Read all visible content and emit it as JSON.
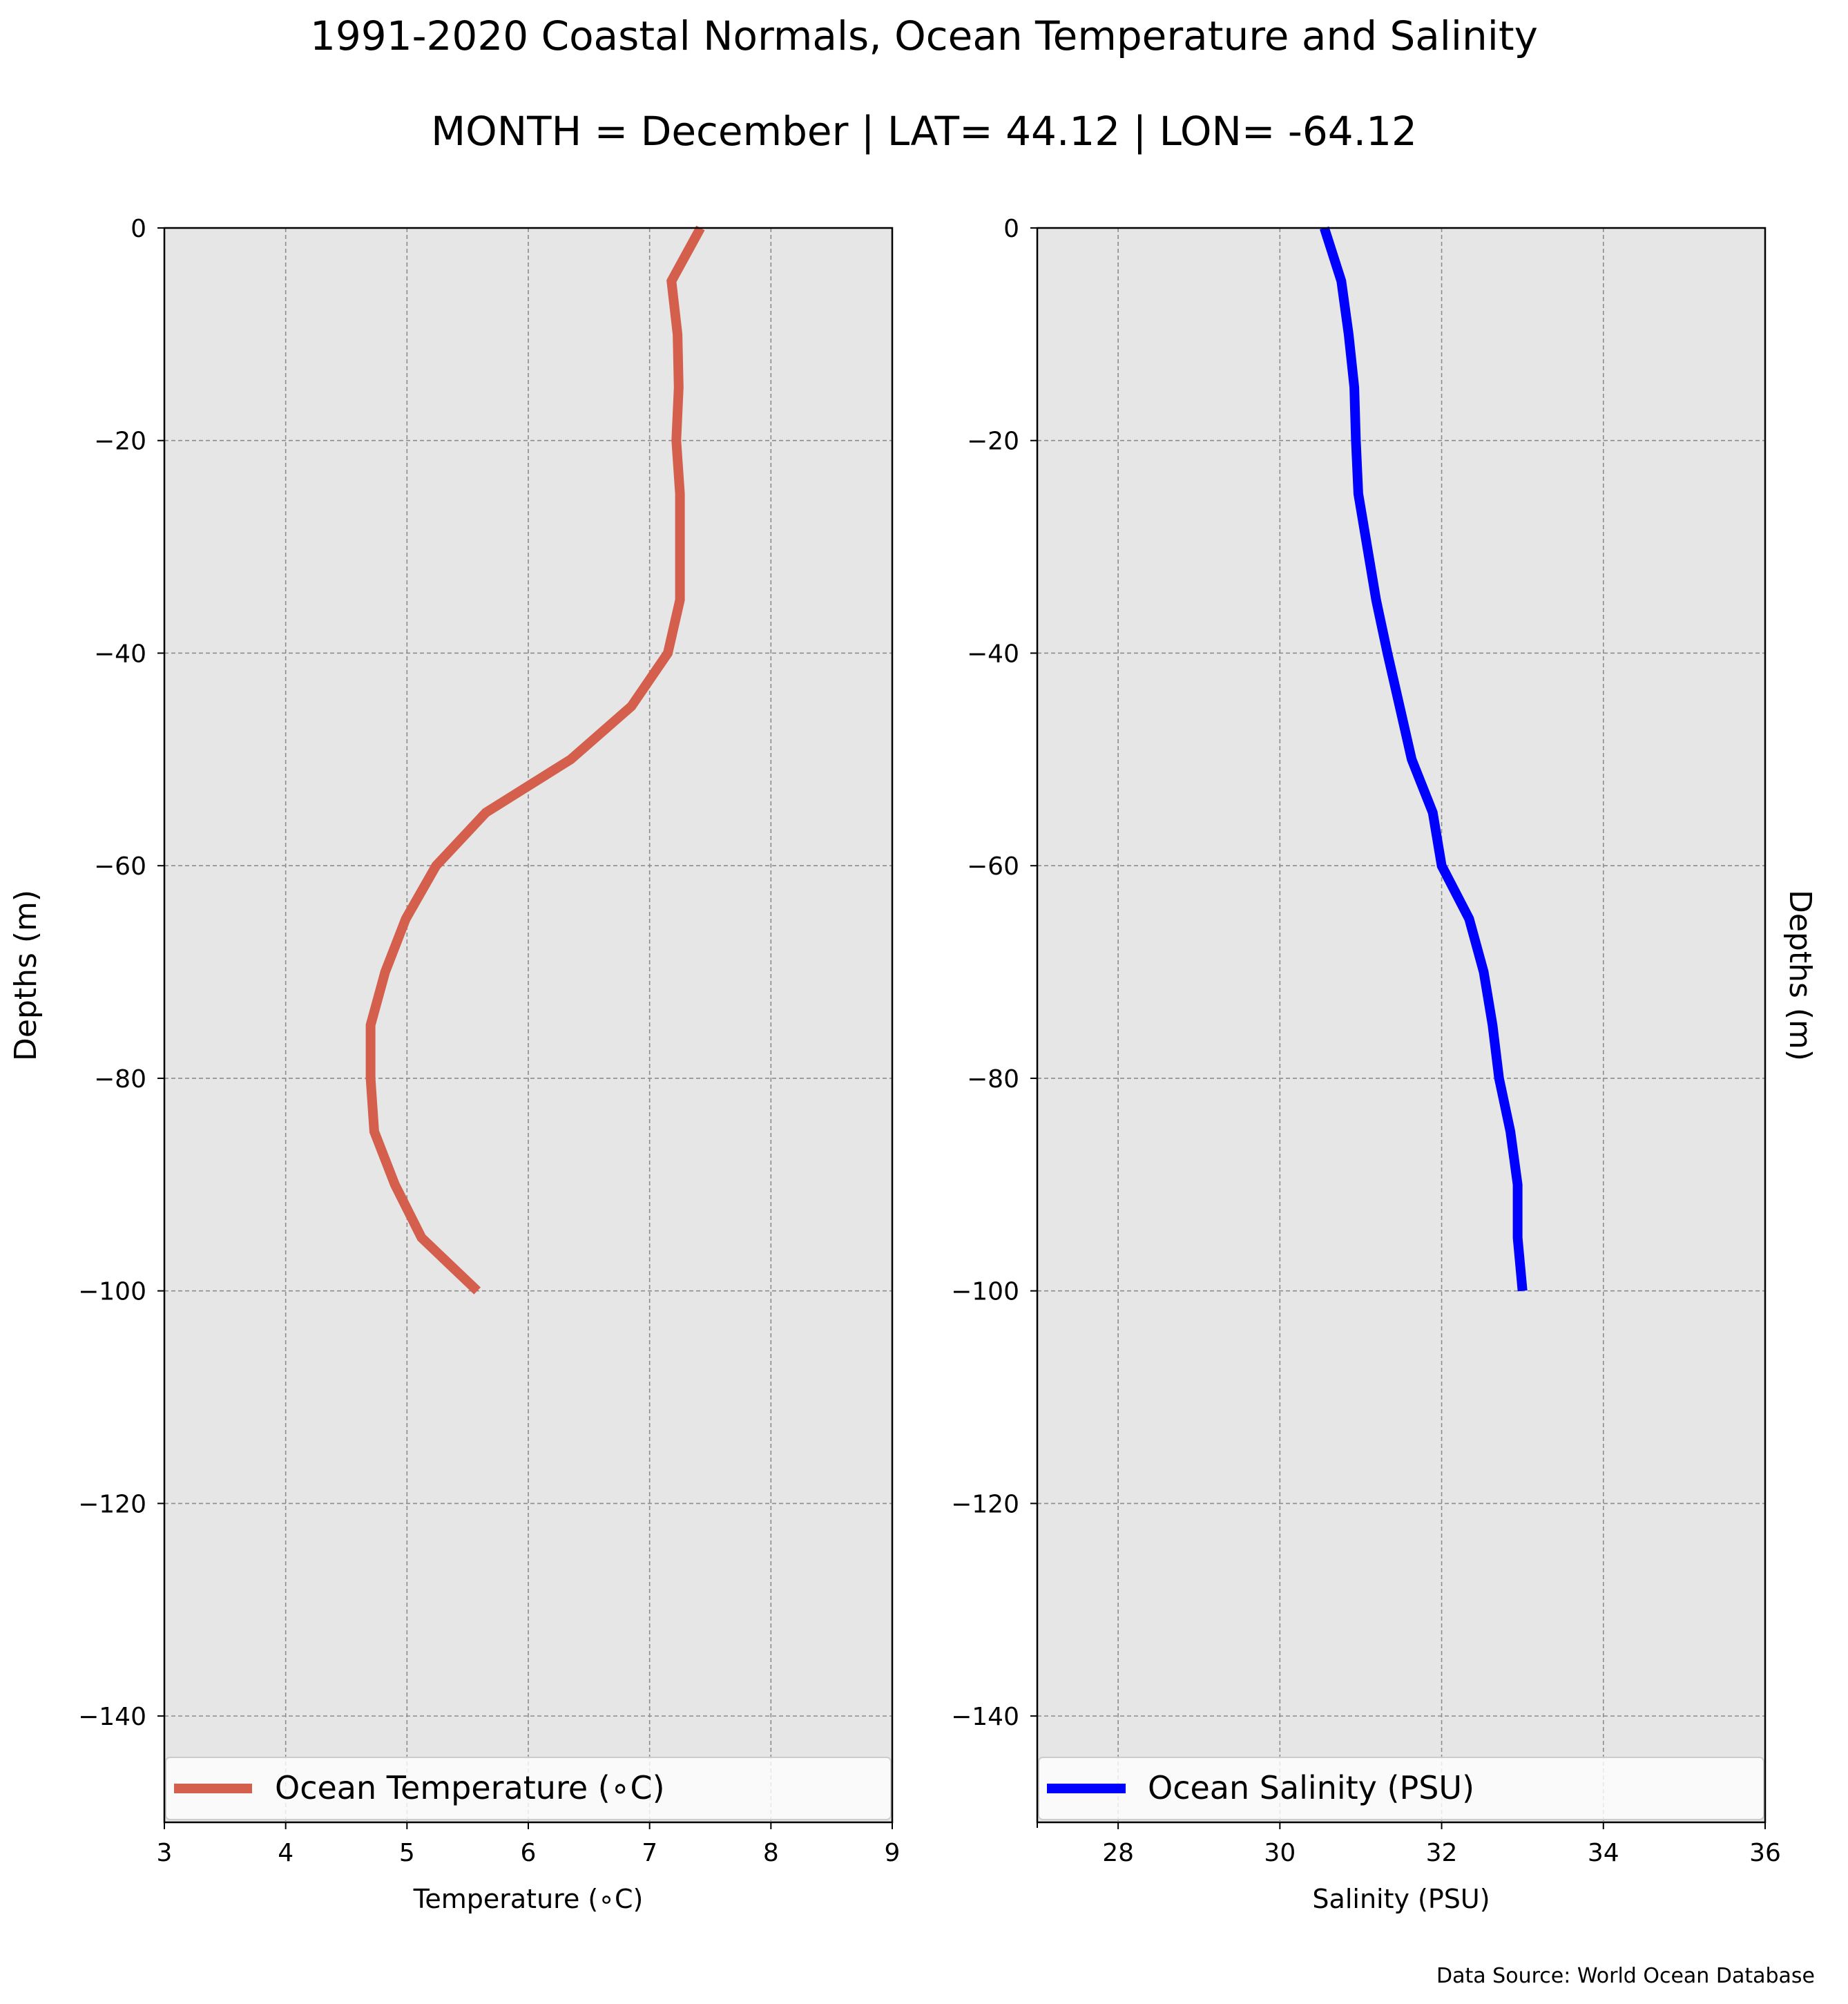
{
  "title": "1991-2020 Coastal Normals, Ocean Temperature and Salinity",
  "subtitle": "MONTH = December | LAT= 44.12 | LON= -64.12",
  "source": "Data Source: World Ocean Database",
  "colors": {
    "temperature": "#d35f4c",
    "salinity": "#0000ff",
    "panel_bg": "#e6e6e6",
    "grid": "#8c8c8c"
  },
  "chart_data": [
    {
      "type": "line",
      "xlabel": "Temperature (∘C)",
      "ylabel": "Depths (m)",
      "xlim": [
        3,
        9
      ],
      "ylim": [
        -150,
        0
      ],
      "xticks": [
        3,
        4,
        5,
        6,
        7,
        8,
        9
      ],
      "yticks": [
        0,
        -20,
        -40,
        -60,
        -80,
        -100,
        -120,
        -140
      ],
      "grid": true,
      "legend_position": "bottom",
      "series": [
        {
          "name": "Ocean Temperature (∘C)",
          "x": [
            7.42,
            7.18,
            7.23,
            7.24,
            7.22,
            7.25,
            7.25,
            7.25,
            7.15,
            6.85,
            6.35,
            5.65,
            5.24,
            4.99,
            4.82,
            4.7,
            4.7,
            4.73,
            4.9,
            5.12,
            5.58
          ],
          "y": [
            0,
            -5,
            -10,
            -15,
            -20,
            -25,
            -30,
            -35,
            -40,
            -45,
            -50,
            -55,
            -60,
            -65,
            -70,
            -75,
            -80,
            -85,
            -90,
            -95,
            -100
          ]
        }
      ]
    },
    {
      "type": "line",
      "xlabel": "Salinity (PSU)",
      "ylabel": "Depths (m)",
      "xlim": [
        27,
        36
      ],
      "ylim": [
        -150,
        0
      ],
      "xticks": [
        28,
        30,
        32,
        34,
        36
      ],
      "yticks": [
        0,
        -20,
        -40,
        -60,
        -80,
        -100,
        -120,
        -140
      ],
      "grid": true,
      "legend_position": "bottom",
      "series": [
        {
          "name": "Ocean Salinity (PSU)",
          "x": [
            30.55,
            30.76,
            30.85,
            30.92,
            30.94,
            30.97,
            31.08,
            31.19,
            31.33,
            31.48,
            31.63,
            31.89,
            32.0,
            32.34,
            32.52,
            32.63,
            32.71,
            32.85,
            32.94,
            32.94,
            33.0
          ],
          "y": [
            0,
            -5,
            -10,
            -15,
            -20,
            -25,
            -30,
            -35,
            -40,
            -45,
            -50,
            -55,
            -60,
            -65,
            -70,
            -75,
            -80,
            -85,
            -90,
            -95,
            -100
          ]
        }
      ]
    }
  ]
}
